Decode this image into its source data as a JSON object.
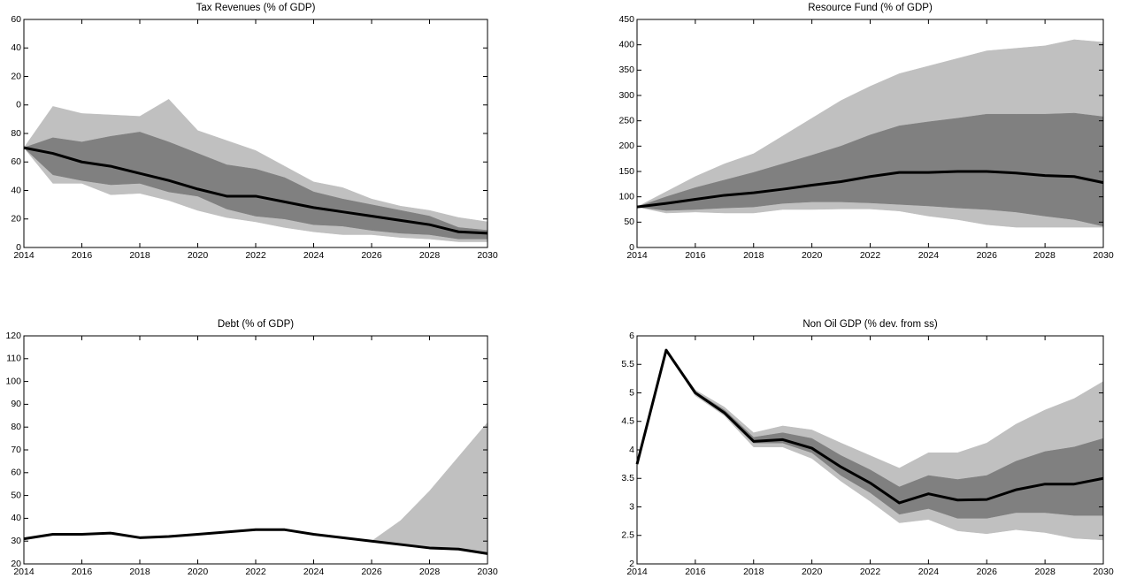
{
  "chart_data": [
    {
      "type": "fan",
      "title": "Tax Revenues (% of GDP)",
      "x": [
        2014,
        2015,
        2016,
        2017,
        2018,
        2019,
        2020,
        2021,
        2022,
        2023,
        2024,
        2025,
        2026,
        2027,
        2028,
        2029,
        2030
      ],
      "xlim": [
        2014,
        2030
      ],
      "xticks": [
        2014,
        2016,
        2018,
        2020,
        2022,
        2024,
        2026,
        2028,
        2030
      ],
      "ylim": [
        0,
        160
      ],
      "yticks": [
        0,
        20,
        40,
        60,
        {
          "value": 80,
          "label": "80"
        },
        {
          "value": 100,
          "label": "0"
        },
        {
          "value": 120,
          "label": "20"
        },
        {
          "value": 140,
          "label": "40"
        },
        {
          "value": 160,
          "label": "60"
        }
      ],
      "color": "#000000",
      "values": [
        70,
        66,
        60,
        57,
        52,
        47,
        41,
        36,
        36,
        32,
        28,
        25,
        22,
        19,
        16,
        11,
        10
      ],
      "bands": [
        {
          "color": "#c0c0c0",
          "lower": [
            70,
            45,
            45,
            37,
            38,
            33,
            26,
            21,
            18,
            14,
            11,
            9,
            9,
            7,
            6,
            4,
            4
          ],
          "upper": [
            70,
            99,
            94,
            93,
            92,
            104,
            82,
            75,
            68,
            57,
            46,
            42,
            34,
            29,
            26,
            21,
            18
          ]
        },
        {
          "color": "#808080",
          "lower": [
            70,
            51,
            47,
            44,
            45,
            39,
            36,
            27,
            22,
            20,
            16,
            15,
            12,
            10,
            9,
            6,
            6
          ],
          "upper": [
            70,
            77,
            74,
            78,
            81,
            74,
            66,
            58,
            55,
            49,
            39,
            34,
            30,
            26,
            22,
            14,
            12
          ]
        }
      ]
    },
    {
      "type": "fan",
      "title": "Resource Fund (% of GDP)",
      "x": [
        2014,
        2015,
        2016,
        2017,
        2018,
        2019,
        2020,
        2021,
        2022,
        2023,
        2024,
        2025,
        2026,
        2027,
        2028,
        2029,
        2030
      ],
      "xlim": [
        2014,
        2030
      ],
      "xticks": [
        2014,
        2016,
        2018,
        2020,
        2022,
        2024,
        2026,
        2028,
        2030
      ],
      "ylim": [
        0,
        450
      ],
      "yticks": [
        0,
        50,
        100,
        150,
        200,
        250,
        300,
        350,
        400,
        450
      ],
      "color": "#000000",
      "values": [
        80,
        87,
        95,
        103,
        108,
        115,
        123,
        130,
        140,
        148,
        148,
        150,
        150,
        147,
        142,
        140,
        128
      ],
      "bands": [
        {
          "color": "#c0c0c0",
          "lower": [
            80,
            68,
            70,
            68,
            68,
            75,
            75,
            76,
            76,
            72,
            62,
            55,
            45,
            40,
            40,
            40,
            40
          ],
          "upper": [
            80,
            110,
            140,
            165,
            185,
            220,
            255,
            290,
            318,
            343,
            358,
            373,
            388,
            393,
            398,
            410,
            405
          ]
        },
        {
          "color": "#808080",
          "lower": [
            80,
            73,
            75,
            78,
            80,
            87,
            90,
            90,
            88,
            85,
            82,
            78,
            75,
            70,
            62,
            55,
            42
          ],
          "upper": [
            80,
            100,
            118,
            133,
            148,
            165,
            182,
            200,
            222,
            240,
            248,
            255,
            263,
            263,
            263,
            265,
            258
          ]
        }
      ]
    },
    {
      "type": "fan",
      "title": "Debt (% of GDP)",
      "x": [
        2014,
        2015,
        2016,
        2017,
        2018,
        2019,
        2020,
        2021,
        2022,
        2023,
        2024,
        2025,
        2026,
        2027,
        2028,
        2029,
        2030
      ],
      "xlim": [
        2014,
        2030
      ],
      "xticks": [
        2014,
        2016,
        2018,
        2020,
        2022,
        2024,
        2026,
        2028,
        2030
      ],
      "ylim": [
        20,
        120
      ],
      "yticks": [
        20,
        30,
        40,
        50,
        60,
        70,
        80,
        90,
        100,
        110,
        120
      ],
      "color": "#000000",
      "values": [
        31,
        33,
        33,
        33.5,
        31.5,
        32,
        33,
        34,
        35,
        35,
        33,
        31.5,
        30,
        28.5,
        27,
        26.5,
        24.5
      ],
      "bands": [
        {
          "color": "#c0c0c0",
          "lower": [
            31,
            33,
            33,
            33.5,
            31.5,
            32,
            33,
            34,
            35,
            35,
            33,
            31.5,
            30,
            28.5,
            27,
            26.5,
            24.5
          ],
          "upper": [
            31,
            33,
            33,
            33.5,
            31.5,
            32,
            33,
            34,
            35,
            35,
            33,
            31.5,
            30,
            39,
            52,
            67,
            82
          ]
        }
      ]
    },
    {
      "type": "fan",
      "title": "Non Oil GDP (% dev. from ss)",
      "x": [
        2014,
        2015,
        2016,
        2017,
        2018,
        2019,
        2020,
        2021,
        2022,
        2023,
        2024,
        2025,
        2026,
        2027,
        2028,
        2029,
        2030
      ],
      "xlim": [
        2014,
        2030
      ],
      "xticks": [
        2014,
        2016,
        2018,
        2020,
        2022,
        2024,
        2026,
        2028,
        2030
      ],
      "ylim": [
        2,
        6
      ],
      "yticks": [
        2,
        2.5,
        3,
        3.5,
        4,
        4.5,
        5,
        5.5,
        6
      ],
      "color": "#000000",
      "values": [
        3.75,
        5.75,
        5.0,
        4.65,
        4.15,
        4.18,
        4.03,
        3.7,
        3.42,
        3.07,
        3.23,
        3.12,
        3.13,
        3.3,
        3.4,
        3.4,
        3.5
      ],
      "bands": [
        {
          "color": "#c0c0c0",
          "lower": [
            3.75,
            5.75,
            4.95,
            4.6,
            4.05,
            4.05,
            3.85,
            3.45,
            3.1,
            2.72,
            2.78,
            2.58,
            2.53,
            2.6,
            2.55,
            2.45,
            2.42
          ],
          "upper": [
            3.75,
            5.75,
            5.05,
            4.75,
            4.3,
            4.42,
            4.35,
            4.12,
            3.9,
            3.68,
            3.95,
            3.95,
            4.12,
            4.45,
            4.7,
            4.9,
            5.2
          ]
        },
        {
          "color": "#808080",
          "lower": [
            3.75,
            5.75,
            4.98,
            4.62,
            4.12,
            4.12,
            3.95,
            3.55,
            3.25,
            2.87,
            2.97,
            2.8,
            2.8,
            2.9,
            2.9,
            2.85,
            2.85
          ],
          "upper": [
            3.75,
            5.75,
            5.02,
            4.7,
            4.22,
            4.3,
            4.2,
            3.9,
            3.65,
            3.35,
            3.55,
            3.48,
            3.55,
            3.8,
            3.97,
            4.05,
            4.2
          ]
        }
      ]
    }
  ]
}
